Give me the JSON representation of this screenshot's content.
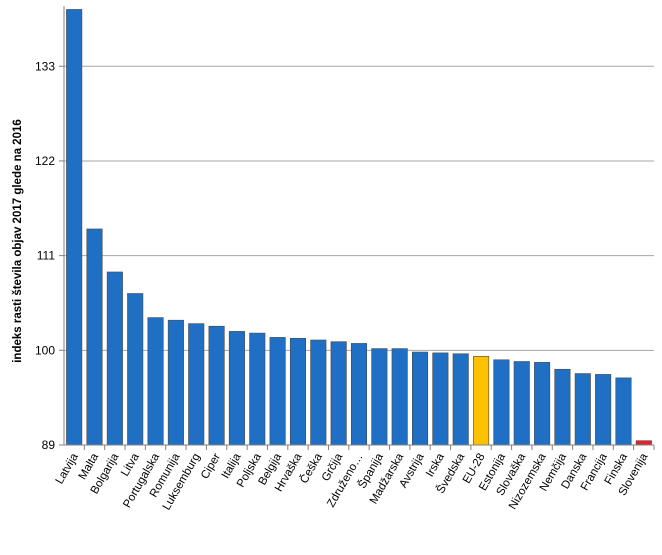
{
  "chart_data": {
    "type": "bar",
    "title": "",
    "xlabel": "",
    "ylabel": "indeks rasti števila objav 2017 glede na 2016",
    "ylim": [
      89,
      140
    ],
    "yticks": [
      89,
      100,
      111,
      122,
      133
    ],
    "grid": true,
    "legend": "none",
    "colors": {
      "default": "#1f6fc5",
      "highlight_eu": "#ffc000",
      "highlight_si": "#e8202a",
      "grid": "#a6a6a6",
      "axis": "#808080"
    },
    "categories": [
      "Latvija",
      "Malta",
      "Bolgarija",
      "Litva",
      "Portugalska",
      "Romunija",
      "Luksemburg",
      "Ciper",
      "Italija",
      "Poljska",
      "Belgija",
      "Hrvaška",
      "Češka",
      "Grčija",
      "Združeno…",
      "Španija",
      "Madžarska",
      "Avstrija",
      "Irska",
      "Švedska",
      "EU-28",
      "Estonija",
      "Slovaška",
      "Nizozemska",
      "Nemčija",
      "Danska",
      "Francija",
      "Finska",
      "Slovenija"
    ],
    "values": [
      139.6,
      114.1,
      109.1,
      106.6,
      103.8,
      103.5,
      103.1,
      102.8,
      102.2,
      102.0,
      101.5,
      101.4,
      101.2,
      101.0,
      100.8,
      100.2,
      100.2,
      99.8,
      99.7,
      99.6,
      99.3,
      98.9,
      98.7,
      98.6,
      97.8,
      97.3,
      97.2,
      96.8,
      89.5
    ],
    "bar_colors": [
      "default",
      "default",
      "default",
      "default",
      "default",
      "default",
      "default",
      "default",
      "default",
      "default",
      "default",
      "default",
      "default",
      "default",
      "default",
      "default",
      "default",
      "default",
      "default",
      "default",
      "highlight_eu",
      "default",
      "default",
      "default",
      "default",
      "default",
      "default",
      "default",
      "highlight_si"
    ]
  }
}
